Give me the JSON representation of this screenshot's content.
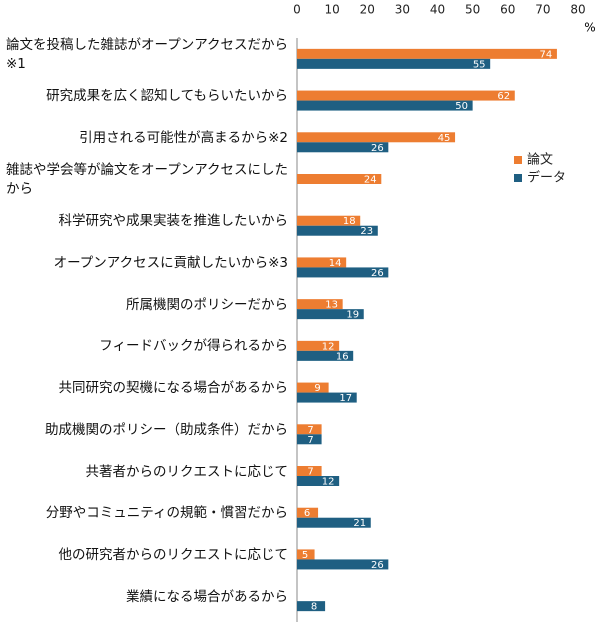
{
  "chart_data": {
    "type": "bar",
    "orientation": "horizontal",
    "categories": [
      "論文を投稿した雑誌がオープンアクセスだから※1",
      "研究成果を広く認知してもらいたいから",
      "引用される可能性が高まるから※2",
      "雑誌や学会等が論文をオープンアクセスにしたから",
      "科学研究や成果実装を推進したいから",
      "オープンアクセスに貢献したいから※3",
      "所属機関のポリシーだから",
      "フィードバックが得られるから",
      "共同研究の契機になる場合があるから",
      "助成機関のポリシー（助成条件）だから",
      "共著者からのリクエストに応じて",
      "分野やコミュニティの規範・慣習だから",
      "他の研究者からのリクエストに応じて",
      "業績になる場合があるから"
    ],
    "series": [
      {
        "name": "論文",
        "color": "#ed7d31",
        "values": [
          74,
          62,
          45,
          24,
          18,
          14,
          13,
          12,
          9,
          7,
          7,
          6,
          5,
          null
        ]
      },
      {
        "name": "データ",
        "color": "#1f5f82",
        "values": [
          55,
          50,
          26,
          null,
          23,
          26,
          19,
          16,
          17,
          7,
          12,
          21,
          26,
          8
        ]
      }
    ],
    "xlim": [
      0,
      80
    ],
    "xticks": [
      0,
      10,
      20,
      30,
      40,
      50,
      60,
      70,
      80
    ],
    "x_unit": "%",
    "grid": false,
    "legend": "right"
  }
}
